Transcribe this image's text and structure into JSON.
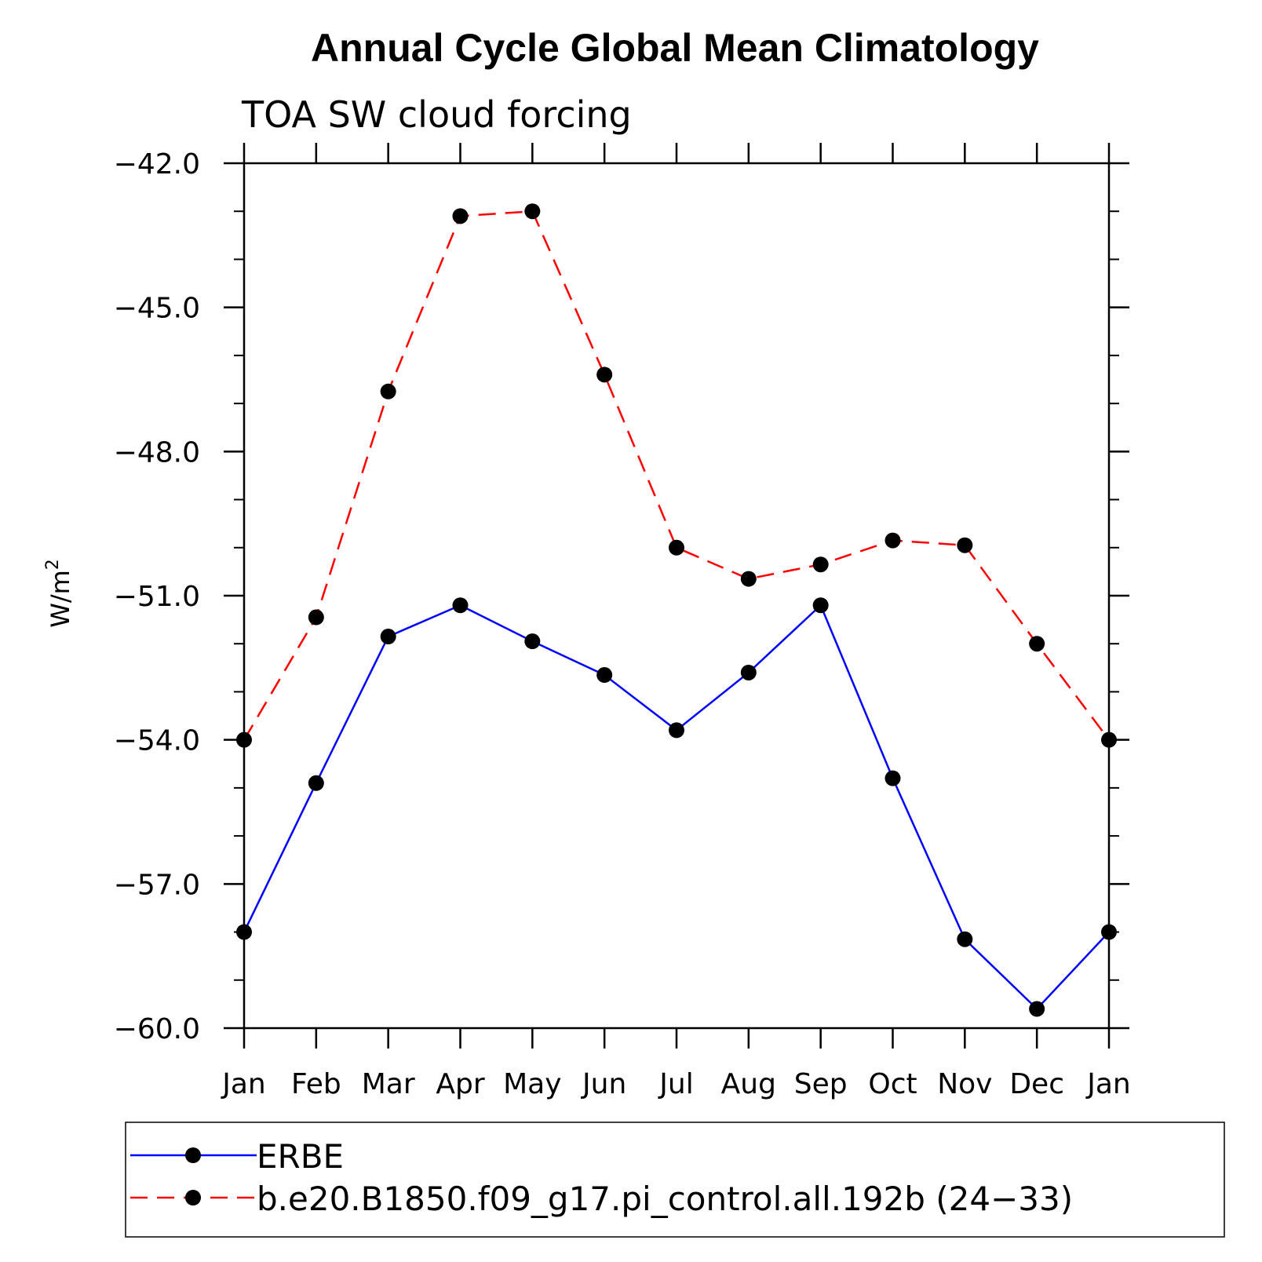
{
  "chart_data": {
    "type": "line",
    "title": "Annual Cycle Global Mean Climatology",
    "subtitle": "TOA SW cloud forcing",
    "ylabel": "W/m",
    "ylabel_superscript": "2",
    "ylim": [
      -60.0,
      -42.0
    ],
    "ytick_values": [
      -42.0,
      -45.0,
      -48.0,
      -51.0,
      -54.0,
      -57.0,
      -60.0
    ],
    "ytick_labels": [
      "−42.0",
      "−45.0",
      "−48.0",
      "−51.0",
      "−54.0",
      "−57.0",
      "−60.0"
    ],
    "categories": [
      "Jan",
      "Feb",
      "Mar",
      "Apr",
      "May",
      "Jun",
      "Jul",
      "Aug",
      "Sep",
      "Oct",
      "Nov",
      "Dec",
      "Jan"
    ],
    "grid": false,
    "legend_position": "bottom",
    "series": [
      {
        "name": "ERBE",
        "color": "#0000ff",
        "line_style": "solid",
        "marker": "filled-circle",
        "values": [
          -58.0,
          -54.9,
          -51.85,
          -51.2,
          -51.95,
          -52.65,
          -53.8,
          -52.6,
          -51.2,
          -54.8,
          -58.15,
          -59.6,
          -58.0
        ]
      },
      {
        "name": "b.e20.B1850.f09_g17.pi_control.all.192b (24−33)",
        "color": "#ff0000",
        "line_style": "dashed",
        "marker": "filled-circle",
        "values": [
          -54.0,
          -51.45,
          -46.75,
          -43.1,
          -43.0,
          -46.4,
          -50.0,
          -50.65,
          -50.35,
          -49.85,
          -49.95,
          -52.0,
          -54.0
        ]
      }
    ]
  }
}
